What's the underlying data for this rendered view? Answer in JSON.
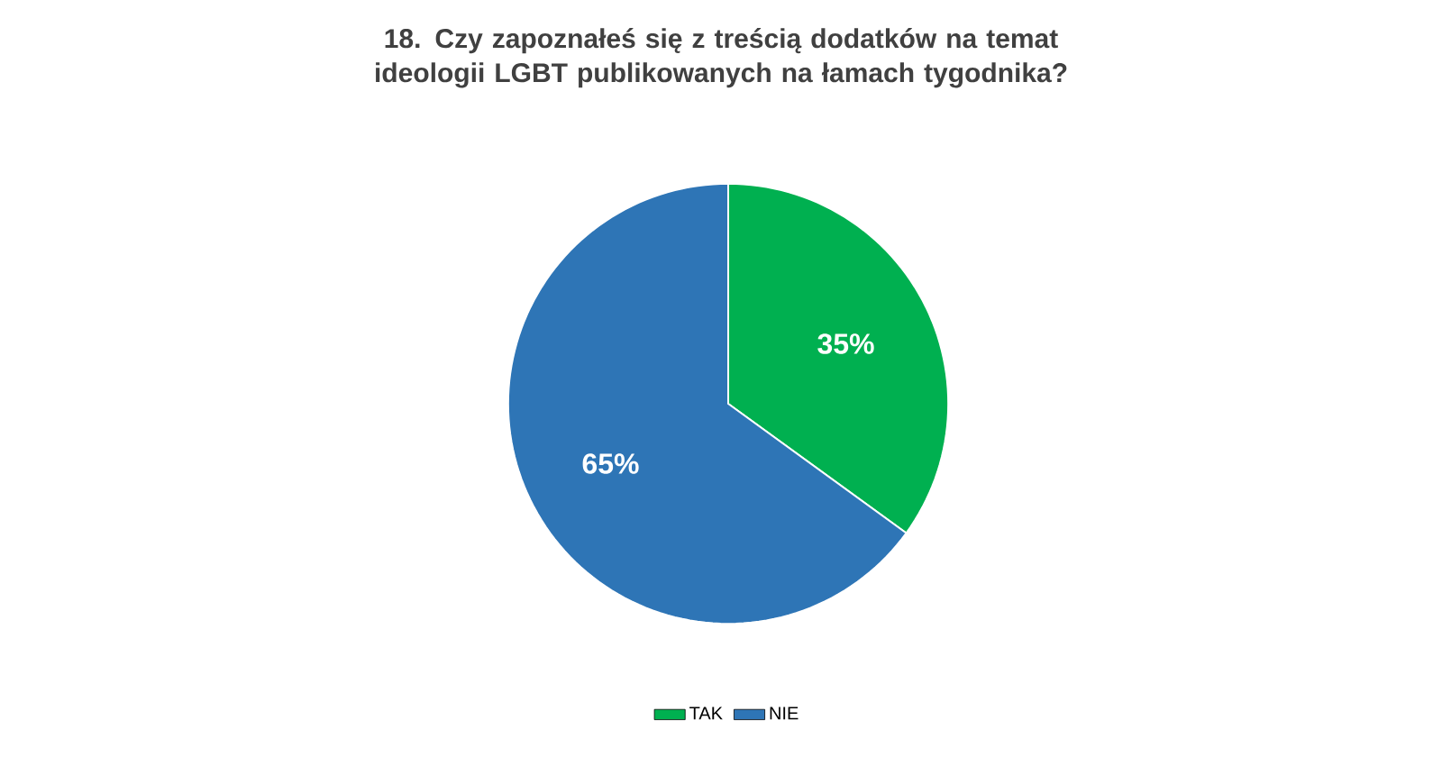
{
  "chart_data": {
    "type": "pie",
    "title": "18. Czy zapoznałeś się z treścią dodatków na temat ideologii LGBT publikowanych na łamach tygodnika?",
    "categories": [
      "TAK",
      "NIE"
    ],
    "values": [
      35,
      65
    ],
    "colors": [
      "#00b050",
      "#2e75b6"
    ],
    "value_labels": [
      "35%",
      "65%"
    ],
    "legend": "bottom"
  }
}
